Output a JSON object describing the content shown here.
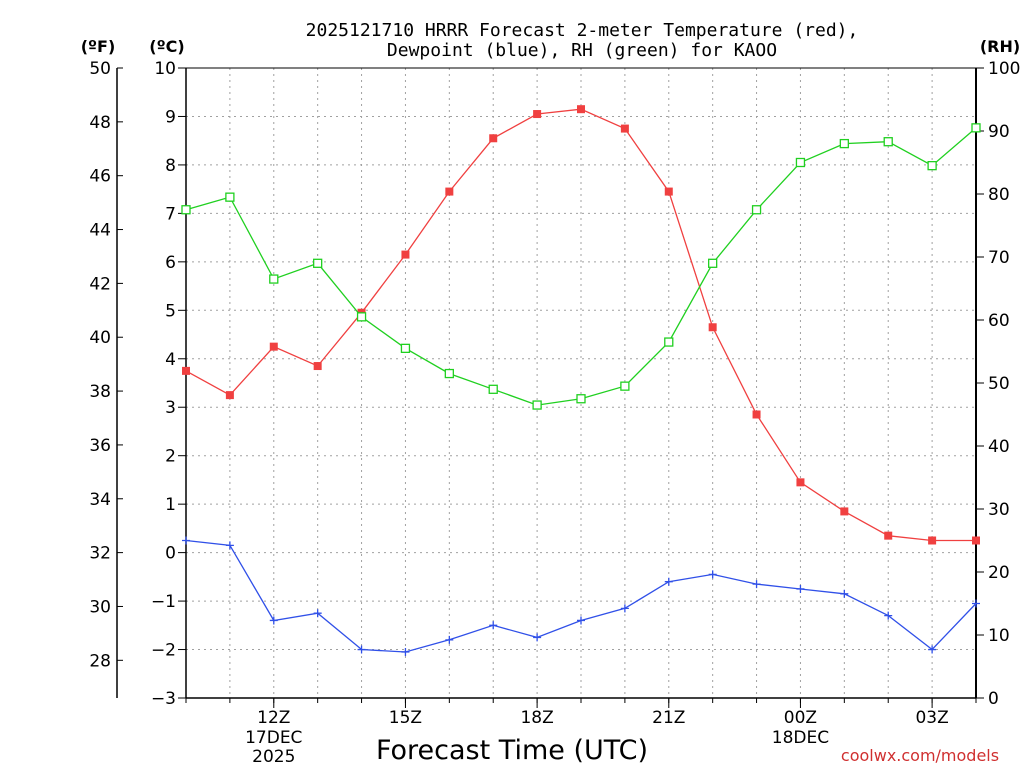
{
  "title_lines": [
    "2025121710 HRRR Forecast 2-meter Temperature (red),",
    "Dewpoint (blue), RH (green) for KAOO"
  ],
  "units": {
    "fahrenheit": "(ºF)",
    "celsius": "(ºC)",
    "rh": "(RH)"
  },
  "xlabel": "Forecast Time (UTC)",
  "credit": "coolwx.com/models",
  "colors": {
    "temperature": "#f04040",
    "dewpoint": "#3050e8",
    "rh": "#20d020",
    "credit": "#d03030",
    "grid": "#a0a0a0"
  },
  "chart_data": {
    "type": "line",
    "title": "2025121710 HRRR Forecast 2-meter Temperature (red), Dewpoint (blue), RH (green) for KAOO",
    "xlabel": "Forecast Time (UTC)",
    "x_hours_utc": [
      10,
      11,
      12,
      13,
      14,
      15,
      16,
      17,
      18,
      19,
      20,
      21,
      22,
      23,
      24,
      25,
      26,
      27,
      28
    ],
    "xlim": [
      10,
      28
    ],
    "x_ticks": [
      {
        "x": 12,
        "label": "12Z",
        "sub": [
          "17DEC",
          "2025"
        ]
      },
      {
        "x": 15,
        "label": "15Z",
        "sub": []
      },
      {
        "x": 18,
        "label": "18Z",
        "sub": []
      },
      {
        "x": 21,
        "label": "21Z",
        "sub": []
      },
      {
        "x": 24,
        "label": "00Z",
        "sub": [
          "18DEC"
        ]
      },
      {
        "x": 27,
        "label": "03Z",
        "sub": []
      }
    ],
    "left_celsius_axis": {
      "label": "(ºC)",
      "ylim": [
        -3,
        10
      ],
      "ticks": [
        -3,
        -2,
        -1,
        0,
        1,
        2,
        3,
        4,
        5,
        6,
        7,
        8,
        9,
        10
      ],
      "tick_labels": [
        "−3",
        "−2",
        "−1",
        "0",
        "1",
        "2",
        "3",
        "4",
        "5",
        "6",
        "7",
        "8",
        "9",
        "10"
      ]
    },
    "left_fahrenheit_axis": {
      "label": "(ºF)",
      "ticks": [
        28,
        30,
        32,
        34,
        36,
        38,
        40,
        42,
        44,
        46,
        48,
        50
      ]
    },
    "right_rh_axis": {
      "label": "(RH)",
      "ylim": [
        0,
        100
      ],
      "ticks": [
        0,
        10,
        20,
        30,
        40,
        50,
        60,
        70,
        80,
        90,
        100
      ]
    },
    "series": [
      {
        "name": "Temperature",
        "axis": "celsius",
        "marker": "filled-square",
        "color": "#f04040",
        "values": [
          3.75,
          3.25,
          4.25,
          3.85,
          4.95,
          6.15,
          7.45,
          8.55,
          9.05,
          9.15,
          8.75,
          7.45,
          4.65,
          2.85,
          1.45,
          0.85,
          0.35,
          0.25,
          0.25
        ]
      },
      {
        "name": "Dewpoint",
        "axis": "celsius",
        "marker": "plus",
        "color": "#3050e8",
        "values": [
          0.25,
          0.15,
          -1.4,
          -1.25,
          -2.0,
          -2.05,
          -1.8,
          -1.5,
          -1.75,
          -1.4,
          -1.15,
          -0.6,
          -0.45,
          -0.65,
          -0.75,
          -0.85,
          -1.3,
          -2.0,
          -1.05
        ]
      },
      {
        "name": "RH",
        "axis": "rh",
        "marker": "open-square",
        "color": "#20d020",
        "values": [
          77.5,
          79.5,
          66.5,
          69,
          60.5,
          55.5,
          51.5,
          49,
          46.5,
          47.5,
          49.5,
          56.5,
          69,
          77.5,
          85,
          88,
          88.3,
          84.5,
          90.5
        ]
      }
    ]
  }
}
